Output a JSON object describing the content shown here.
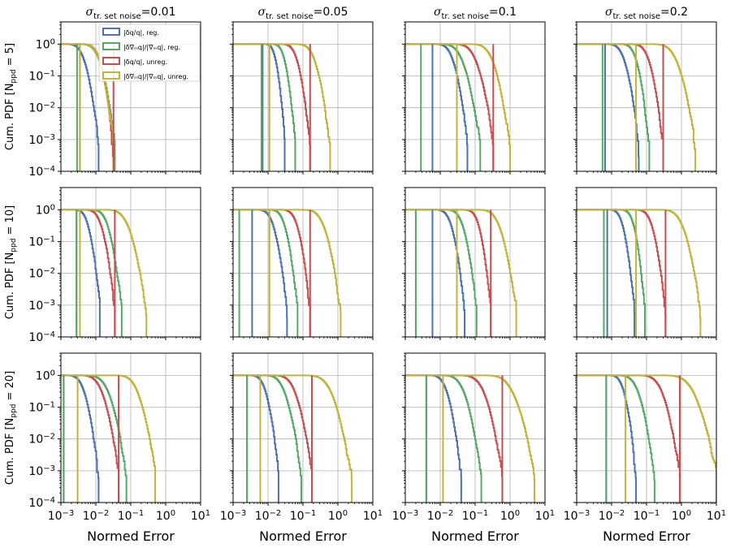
{
  "figure": {
    "row_labels": [
      "Cum. PDF  [N",
      "Cum. PDF  [N",
      "Cum. PDF  [N"
    ],
    "row_sub": [
      "ppd",
      "ppd",
      "ppd"
    ],
    "row_vals": [
      "= 5]",
      "= 10]",
      "= 20]"
    ],
    "col_titles": [
      {
        "sigma": "σ",
        "sub": "tr. set noise",
        "value": "=0.01"
      },
      {
        "sigma": "σ",
        "sub": "tr. set noise",
        "value": "=0.05"
      },
      {
        "sigma": "σ",
        "sub": "tr. set noise",
        "value": "=0.1"
      },
      {
        "sigma": "σ",
        "sub": "tr. set noise",
        "value": "=0.2"
      }
    ],
    "xlabel": "Normed Error",
    "x_ticks": [
      {
        "base": "10",
        "exp": "−3"
      },
      {
        "base": "10",
        "exp": "−2"
      },
      {
        "base": "10",
        "exp": "−1"
      },
      {
        "base": "10",
        "exp": "0"
      },
      {
        "base": "10",
        "exp": "1"
      }
    ],
    "y_ticks": [
      {
        "base": "10",
        "exp": "0"
      },
      {
        "base": "10",
        "exp": "−1"
      },
      {
        "base": "10",
        "exp": "−2"
      },
      {
        "base": "10",
        "exp": "−3"
      },
      {
        "base": "10",
        "exp": "−4"
      }
    ],
    "legend": [
      {
        "label": "|δq/q|, reg.",
        "color": "#4c72b0"
      },
      {
        "label": "|δ∇ₘq|/|∇ₘq|, reg.",
        "color": "#55a868"
      },
      {
        "label": "|δq/q|, unreg.",
        "color": "#c44e52"
      },
      {
        "label": "|δ∇ₘq|/|∇ₘq|, unreg.",
        "color": "#c4b33a"
      }
    ]
  },
  "chart_data": {
    "type": "line",
    "description_scale": "log-log step cumulative PDF, 3 rows (N_ppd = 5, 10, 20) x 4 columns (sigma = 0.01, 0.05, 0.1, 0.2)",
    "xlim": [
      0.001,
      10
    ],
    "ylim": [
      0.0001,
      5
    ],
    "xscale": "log",
    "yscale": "log",
    "grid": true,
    "legend_position": "top-left of first panel",
    "series_order": [
      "|δq/q|, reg.",
      "|δ∇ₘq|/|∇ₘq|, reg.",
      "|δq/q|, unreg.",
      "|δ∇ₘq|/|∇ₘq|, unreg."
    ],
    "panels": [
      {
        "row": 0,
        "col": 0,
        "curves": [
          [
            0.0012,
            0.012
          ],
          [
            0.003,
            0.035
          ],
          [
            0.0035,
            0.032
          ],
          [
            0.0035,
            0.032
          ]
        ],
        "vlines": [
          0.0035,
          0.0029,
          0.032,
          0.0035
        ]
      },
      {
        "row": 0,
        "col": 1,
        "curves": [
          [
            0.007,
            0.03
          ],
          [
            0.011,
            0.06
          ],
          [
            0.02,
            0.16
          ],
          [
            0.05,
            0.6
          ]
        ],
        "vlines": [
          0.007,
          0.0065,
          0.16,
          0.011
        ]
      },
      {
        "row": 0,
        "col": 2,
        "curves": [
          [
            0.006,
            0.06
          ],
          [
            0.008,
            0.14
          ],
          [
            0.02,
            0.33
          ],
          [
            0.06,
            1.0
          ]
        ],
        "vlines": [
          0.006,
          0.0028,
          0.33,
          0.03
        ]
      },
      {
        "row": 0,
        "col": 3,
        "curves": [
          [
            0.006,
            0.06
          ],
          [
            0.015,
            0.12
          ],
          [
            0.03,
            0.3
          ],
          [
            0.12,
            2.5
          ]
        ],
        "vlines": [
          0.0065,
          0.0055,
          0.3,
          0.05
        ]
      },
      {
        "row": 1,
        "col": 0,
        "curves": [
          [
            0.002,
            0.013
          ],
          [
            0.006,
            0.055
          ],
          [
            0.004,
            0.035
          ],
          [
            0.015,
            0.28
          ]
        ],
        "vlines": [
          0.0028,
          0.0028,
          0.035,
          0.0035
        ]
      },
      {
        "row": 1,
        "col": 1,
        "curves": [
          [
            0.004,
            0.035
          ],
          [
            0.009,
            0.07
          ],
          [
            0.02,
            0.16
          ],
          [
            0.08,
            1.2
          ]
        ],
        "vlines": [
          0.0035,
          0.0015,
          0.16,
          0.011
        ]
      },
      {
        "row": 1,
        "col": 2,
        "curves": [
          [
            0.006,
            0.05
          ],
          [
            0.012,
            0.11
          ],
          [
            0.04,
            0.28
          ],
          [
            0.1,
            1.5
          ]
        ],
        "vlines": [
          0.006,
          0.002,
          0.28,
          0.03
        ]
      },
      {
        "row": 1,
        "col": 3,
        "curves": [
          [
            0.007,
            0.045
          ],
          [
            0.015,
            0.09
          ],
          [
            0.04,
            0.35
          ],
          [
            0.2,
            3.5
          ]
        ],
        "vlines": [
          0.0075,
          0.006,
          0.35,
          0.05
        ]
      },
      {
        "row": 2,
        "col": 0,
        "curves": [
          [
            0.0012,
            0.012
          ],
          [
            0.004,
            0.075
          ],
          [
            0.003,
            0.045
          ],
          [
            0.03,
            0.5
          ]
        ],
        "vlines": [
          0.0012,
          0.0012,
          0.045,
          0.003
        ]
      },
      {
        "row": 2,
        "col": 1,
        "curves": [
          [
            0.0025,
            0.02
          ],
          [
            0.006,
            0.09
          ],
          [
            0.012,
            0.18
          ],
          [
            0.09,
            2.5
          ]
        ],
        "vlines": [
          0.0025,
          0.0025,
          0.18,
          0.006
        ]
      },
      {
        "row": 2,
        "col": 2,
        "curves": [
          [
            0.004,
            0.04
          ],
          [
            0.009,
            0.15
          ],
          [
            0.03,
            0.6
          ],
          [
            0.15,
            5.0
          ]
        ],
        "vlines": [
          0.004,
          0.004,
          0.6,
          0.012
        ]
      },
      {
        "row": 2,
        "col": 3,
        "curves": [
          [
            0.007,
            0.05
          ],
          [
            0.012,
            0.17
          ],
          [
            0.05,
            0.9
          ],
          [
            0.25,
            10.0
          ]
        ],
        "vlines": [
          0.007,
          0.007,
          0.9,
          0.025
        ]
      }
    ]
  }
}
